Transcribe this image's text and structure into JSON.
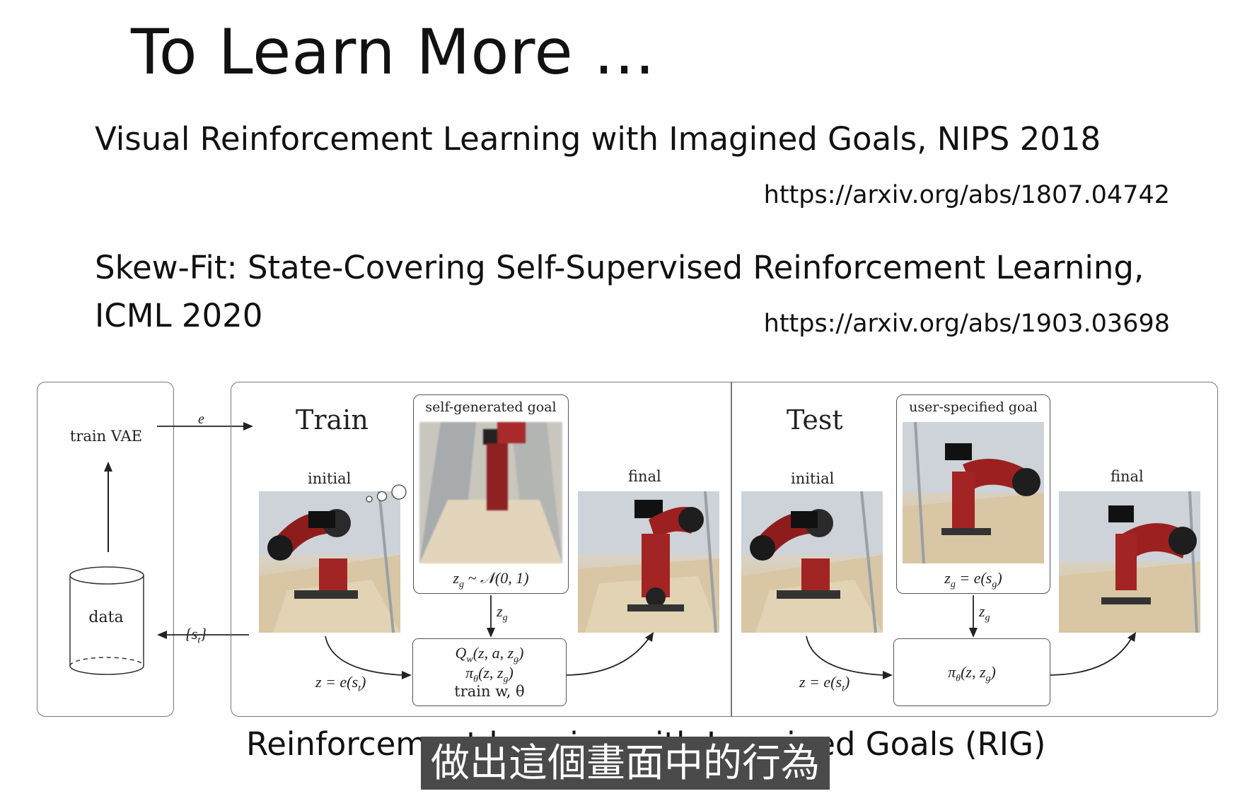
{
  "slide": {
    "title": "To Learn More ...",
    "references": [
      {
        "title_line1": "Visual Reinforcement Learning with Imagined Goals, NIPS 2018",
        "url": "https://arxiv.org/abs/1807.04742"
      },
      {
        "title_line1": "Skew-Fit: State-Covering Self-Supervised Reinforcement Learning,",
        "title_line2": "ICML 2020",
        "url": "https://arxiv.org/abs/1903.03698"
      }
    ],
    "figure": {
      "left": {
        "train_vae": "train VAE",
        "data": "data",
        "e_label": "e",
        "st_label": "{s",
        "st_sub": "t",
        "st_close": "}"
      },
      "train": {
        "heading": "Train",
        "goal_label": "self-generated goal",
        "initial": "initial",
        "final": "final",
        "goal_formula": "z",
        "goal_formula_sub": "g",
        "goal_formula_rest": " ~ 𝒩(0, 1)",
        "zg": "z",
        "zg_sub": "g",
        "z_enc": "z = e(s",
        "z_enc_sub": "t",
        "z_enc_close": ")",
        "box_line1": "Q",
        "box_line1_sub": "w",
        "box_line1_rest": "(z, a, z",
        "box_line1_sub2": "g",
        "box_line1_close": ")",
        "box_line2": "π",
        "box_line2_sub": "θ",
        "box_line2_rest": "(z, z",
        "box_line2_sub2": "g",
        "box_line2_close": ")",
        "box_line3": "train w, θ"
      },
      "test": {
        "heading": "Test",
        "goal_label": "user-specified goal",
        "initial": "initial",
        "final": "final",
        "goal_formula": "z",
        "goal_formula_sub": "g",
        "goal_formula_rest": " = e(s",
        "goal_formula_sub2": "g",
        "goal_formula_close": ")",
        "zg": "z",
        "zg_sub": "g",
        "z_enc": "z = e(s",
        "z_enc_sub": "t",
        "z_enc_close": ")",
        "box_line1": "π",
        "box_line1_sub": "θ",
        "box_line1_rest": "(z, z",
        "box_line1_sub2": "g",
        "box_line1_close": ")"
      }
    },
    "caption": "Reinforcement learning with Imagined Goals (RIG)",
    "subtitle": "做出這個畫面中的行為"
  }
}
